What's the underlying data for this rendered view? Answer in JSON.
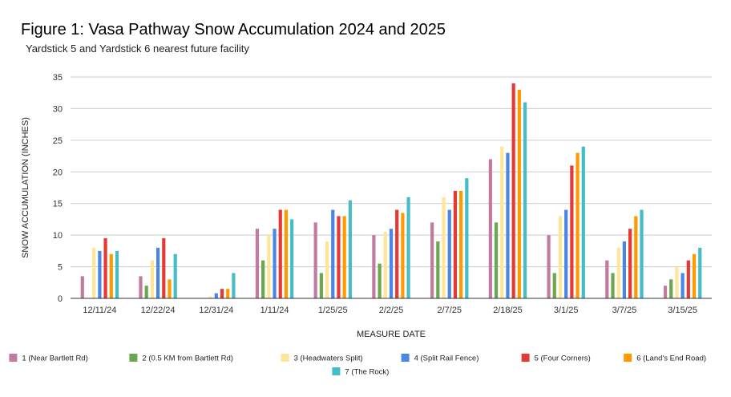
{
  "chart_data": {
    "type": "bar",
    "title": "Figure 1: Vasa Pathway Snow Accumulation 2024 and 2025",
    "subtitle": "Yardstick 5 and Yardstick 6 nearest future facility",
    "xlabel": "MEASURE DATE",
    "ylabel": "SNOW ACCUMULATION (INCHES)",
    "ylim": [
      0,
      35
    ],
    "yticks": [
      0,
      5,
      10,
      15,
      20,
      25,
      30,
      35
    ],
    "grid": true,
    "legend_position": "bottom",
    "categories": [
      "12/11/24",
      "12/22/24",
      "12/31/24",
      "1/11/24",
      "1/25/25",
      "2/2/25",
      "2/7/25",
      "2/18/25",
      "3/1/25",
      "3/7/25",
      "3/15/25"
    ],
    "series": [
      {
        "name": "1 (Near Bartlett Rd)",
        "color": "#c27ba0",
        "values": [
          3.5,
          3.5,
          0,
          11,
          12,
          10,
          12,
          22,
          10,
          6,
          2
        ]
      },
      {
        "name": "2 (0.5 KM from Bartlett Rd)",
        "color": "#6aa84f",
        "values": [
          0,
          2,
          0,
          6,
          4,
          5.5,
          9,
          12,
          4,
          4,
          3
        ]
      },
      {
        "name": "3 (Headwaters Split)",
        "color": "#ffe599",
        "values": [
          8,
          6,
          0.3,
          10,
          9,
          10.5,
          16,
          24,
          13,
          8,
          5
        ]
      },
      {
        "name": "4 (Split Rail Fence)",
        "color": "#4a86e8",
        "values": [
          7.5,
          8,
          0.8,
          11,
          14,
          11,
          14,
          23,
          14,
          9,
          4
        ]
      },
      {
        "name": "5 (Four Corners)",
        "color": "#e53935",
        "values": [
          9.5,
          9.5,
          1.5,
          14,
          13,
          14,
          17,
          34,
          21,
          11,
          6
        ]
      },
      {
        "name": "6 (Land's End Road)",
        "color": "#ff9900",
        "values": [
          7,
          3,
          1.5,
          14,
          13,
          13.5,
          17,
          33,
          23,
          13,
          7
        ]
      },
      {
        "name": "7 (The Rock)",
        "color": "#46bdc6",
        "values": [
          7.5,
          7,
          4,
          12.5,
          15.5,
          16,
          19,
          31,
          24,
          14,
          8
        ]
      }
    ]
  }
}
